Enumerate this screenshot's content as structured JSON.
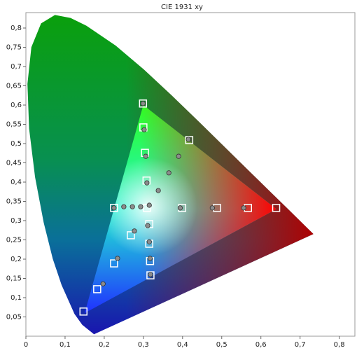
{
  "chart_data": {
    "type": "scatter",
    "title": "CIE 1931 xy",
    "xlim": [
      0,
      0.84
    ],
    "ylim": [
      0,
      0.84
    ],
    "xticks": [
      0,
      {
        "value": 0.1,
        "label": "0,1"
      },
      {
        "value": 0.2,
        "label": "0,2"
      },
      {
        "value": 0.3,
        "label": "0,3"
      },
      {
        "value": 0.4,
        "label": "0,4"
      },
      {
        "value": 0.5,
        "label": "0,5"
      },
      {
        "value": 0.6,
        "label": "0,6"
      },
      {
        "value": 0.7,
        "label": "0,7"
      },
      {
        "value": 0.8,
        "label": "0,8"
      }
    ],
    "yticks": [
      {
        "value": 0.05,
        "label": "0,05"
      },
      {
        "value": 0.1,
        "label": "0,1"
      },
      {
        "value": 0.15,
        "label": "0,15"
      },
      {
        "value": 0.2,
        "label": "0,2"
      },
      {
        "value": 0.25,
        "label": "0,25"
      },
      {
        "value": 0.3,
        "label": "0,3"
      },
      {
        "value": 0.35,
        "label": "0,35"
      },
      {
        "value": 0.4,
        "label": "0,4"
      },
      {
        "value": 0.45,
        "label": "0,45"
      },
      {
        "value": 0.5,
        "label": "0,5"
      },
      {
        "value": 0.55,
        "label": "0,55"
      },
      {
        "value": 0.6,
        "label": "0,6"
      },
      {
        "value": 0.65,
        "label": "0,65"
      },
      {
        "value": 0.7,
        "label": "0,7"
      },
      {
        "value": 0.75,
        "label": "0,75"
      },
      {
        "value": 0.8,
        "label": "0,8"
      }
    ],
    "grid": false,
    "series": [
      {
        "marker": "square",
        "color": "#ffffff",
        "x": [
          0.639,
          0.567,
          0.488,
          0.399,
          0.299,
          0.3,
          0.304,
          0.308,
          0.147,
          0.182,
          0.225,
          0.268,
          0.225,
          0.417,
          0.318,
          0.317,
          0.315,
          0.315,
          0.309
        ],
        "y": [
          0.333,
          0.333,
          0.333,
          0.333,
          0.604,
          0.542,
          0.476,
          0.404,
          0.064,
          0.122,
          0.189,
          0.262,
          0.333,
          0.509,
          0.158,
          0.195,
          0.24,
          0.291,
          0.333
        ]
      },
      {
        "marker": "circle",
        "color": "#8c8c8c",
        "x": [
          0.299,
          0.302,
          0.306,
          0.309,
          0.315,
          0.415,
          0.39,
          0.365,
          0.338,
          0.394,
          0.476,
          0.556,
          0.225,
          0.25,
          0.272,
          0.293,
          0.277,
          0.234,
          0.197,
          0.311,
          0.315,
          0.317,
          0.318
        ],
        "y": [
          0.604,
          0.536,
          0.467,
          0.398,
          0.34,
          0.511,
          0.467,
          0.424,
          0.378,
          0.333,
          0.333,
          0.333,
          0.333,
          0.336,
          0.336,
          0.336,
          0.273,
          0.202,
          0.136,
          0.287,
          0.245,
          0.202,
          0.16
        ]
      }
    ]
  }
}
